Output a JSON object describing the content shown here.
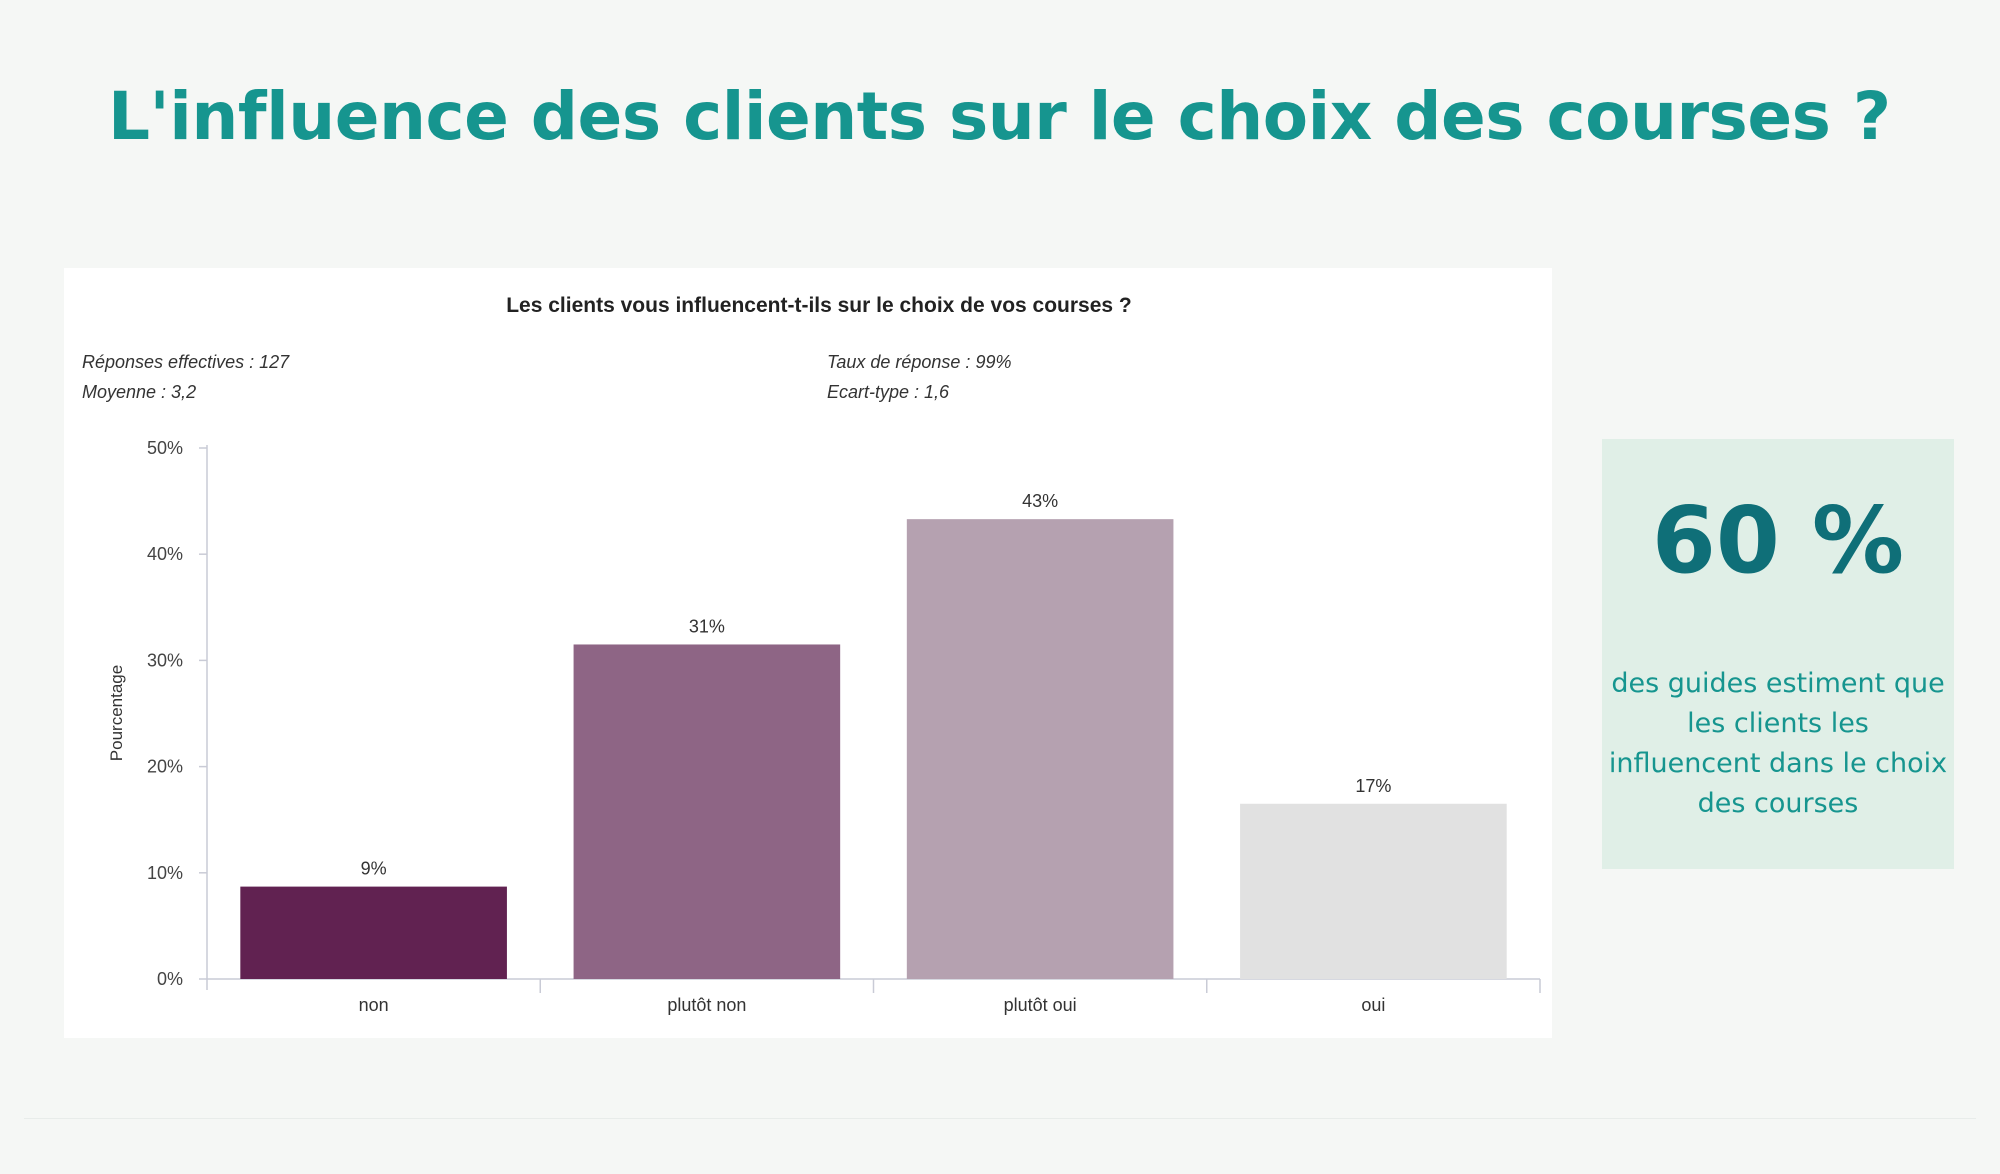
{
  "page": {
    "title": "L'influence des clients sur le choix des courses ?"
  },
  "stat": {
    "value": "60 %",
    "caption": "des guides estiment que les clients les influencent dans le choix des courses"
  },
  "chart_data": {
    "type": "bar",
    "title": "Les clients vous influencent-t-ils sur le choix de vos courses ?",
    "stats": {
      "responses": "Réponses effectives : 127",
      "mean": "Moyenne : 3,2",
      "rate": "Taux de réponse : 99%",
      "stddev": "Ecart-type : 1,6"
    },
    "xlabel": "",
    "ylabel": "Pourcentage",
    "ylim": [
      0,
      50
    ],
    "yticks": [
      0,
      10,
      20,
      30,
      40,
      50
    ],
    "ytick_labels": [
      "0%",
      "10%",
      "20%",
      "30%",
      "40%",
      "50%"
    ],
    "categories": [
      "non",
      "plutôt non",
      "plutôt oui",
      "oui"
    ],
    "values": [
      9,
      31,
      43,
      17
    ],
    "plot_values": [
      8.7,
      31.5,
      43.3,
      16.5
    ],
    "value_labels": [
      "9%",
      "31%",
      "43%",
      "17%"
    ],
    "colors": [
      "#612251",
      "#8e6585",
      "#b5a1b0",
      "#e1e1e1"
    ],
    "grid": false
  }
}
